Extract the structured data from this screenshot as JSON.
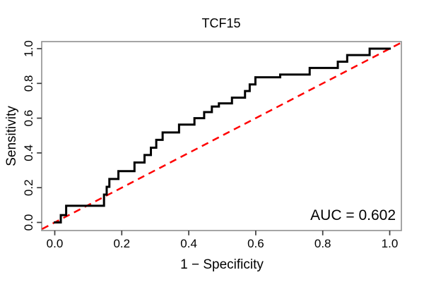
{
  "chart_data": {
    "type": "line",
    "subtype": "roc-step-curve",
    "title": "TCF15",
    "xlabel": "1 − Specificity",
    "ylabel": "Sensitivity",
    "xlim": [
      -0.04,
      1.04
    ],
    "ylim": [
      -0.04,
      1.04
    ],
    "grid": false,
    "legend_position": "none",
    "x_ticks": {
      "values": [
        0,
        0.2,
        0.4,
        0.6,
        0.8,
        1.0
      ],
      "labels": [
        "0.0",
        "0.2",
        "0.4",
        "0.6",
        "0.8",
        "1.0"
      ]
    },
    "y_ticks": {
      "values": [
        0,
        0.2,
        0.4,
        0.6,
        0.8,
        1.0
      ],
      "labels": [
        "0.0",
        "0.2",
        "0.4",
        "0.6",
        "0.8",
        "1.0"
      ]
    },
    "annotation": {
      "auc_label": "AUC = 0.602",
      "auc_value": 0.602
    },
    "palette": {
      "curve": "#000000",
      "reference": "#ff0000",
      "frame": "#8f8f8f",
      "tick": "#3c3c3c",
      "text": "#000000",
      "background": "#ffffff"
    },
    "series": [
      {
        "name": "ROC curve TCF15",
        "style": "step-solid",
        "color": "#000000",
        "points": [
          [
            0,
            0
          ],
          [
            0.018,
            0
          ],
          [
            0.018,
            0.042
          ],
          [
            0.034,
            0.042
          ],
          [
            0.034,
            0.096
          ],
          [
            0.147,
            0.096
          ],
          [
            0.147,
            0.16
          ],
          [
            0.155,
            0.16
          ],
          [
            0.155,
            0.205
          ],
          [
            0.163,
            0.205
          ],
          [
            0.163,
            0.25
          ],
          [
            0.19,
            0.25
          ],
          [
            0.19,
            0.295
          ],
          [
            0.238,
            0.295
          ],
          [
            0.238,
            0.345
          ],
          [
            0.268,
            0.345
          ],
          [
            0.268,
            0.388
          ],
          [
            0.287,
            0.388
          ],
          [
            0.287,
            0.43
          ],
          [
            0.303,
            0.43
          ],
          [
            0.303,
            0.475
          ],
          [
            0.322,
            0.475
          ],
          [
            0.322,
            0.518
          ],
          [
            0.371,
            0.518
          ],
          [
            0.371,
            0.563
          ],
          [
            0.417,
            0.563
          ],
          [
            0.417,
            0.6
          ],
          [
            0.446,
            0.6
          ],
          [
            0.446,
            0.635
          ],
          [
            0.469,
            0.635
          ],
          [
            0.469,
            0.667
          ],
          [
            0.49,
            0.667
          ],
          [
            0.49,
            0.685
          ],
          [
            0.529,
            0.685
          ],
          [
            0.529,
            0.718
          ],
          [
            0.568,
            0.718
          ],
          [
            0.568,
            0.756
          ],
          [
            0.582,
            0.756
          ],
          [
            0.582,
            0.794
          ],
          [
            0.599,
            0.794
          ],
          [
            0.599,
            0.835
          ],
          [
            0.673,
            0.835
          ],
          [
            0.673,
            0.851
          ],
          [
            0.761,
            0.851
          ],
          [
            0.761,
            0.889
          ],
          [
            0.845,
            0.889
          ],
          [
            0.845,
            0.925
          ],
          [
            0.873,
            0.925
          ],
          [
            0.873,
            0.963
          ],
          [
            0.94,
            0.963
          ],
          [
            0.94,
            1
          ],
          [
            1,
            1
          ]
        ]
      },
      {
        "name": "chance diagonal",
        "style": "dashed",
        "color": "#ff0000",
        "points": [
          [
            0,
            0
          ],
          [
            1,
            1
          ]
        ]
      }
    ]
  }
}
